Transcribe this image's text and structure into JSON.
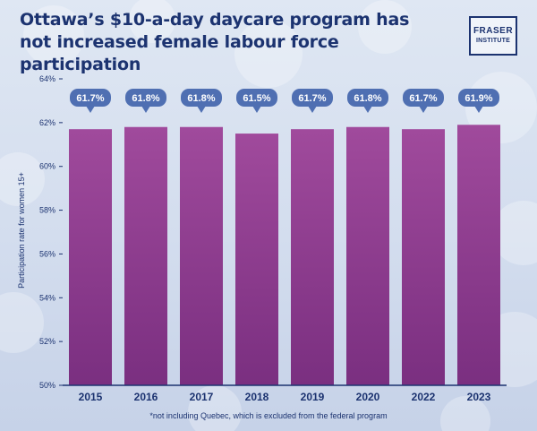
{
  "title": "Ottawa’s $10-a-day daycare program has not increased female labour force participation",
  "logo": {
    "line1": "FRASER",
    "line2": "INSTITUTE"
  },
  "footnote": "*not including Quebec, which is excluded from the federal program",
  "colors": {
    "title": "#1c3370",
    "bar_top": "#a04a9c",
    "bar_bottom": "#7a2f80",
    "callout": "#4f6fb2",
    "axis": "#1c3370"
  },
  "chart_data": {
    "type": "bar",
    "categories": [
      "2015",
      "2016",
      "2017",
      "2018",
      "2019",
      "2020",
      "2022",
      "2023"
    ],
    "values": [
      61.7,
      61.8,
      61.8,
      61.5,
      61.7,
      61.8,
      61.7,
      61.9
    ],
    "data_labels": [
      "61.7%",
      "61.8%",
      "61.8%",
      "61.5%",
      "61.7%",
      "61.8%",
      "61.7%",
      "61.9%"
    ],
    "ylabel": "Participation rate for women 15+",
    "xlabel": "",
    "ylim": [
      50,
      64
    ],
    "yticks": [
      50,
      52,
      54,
      56,
      58,
      60,
      62,
      64
    ],
    "ytick_labels": [
      "50%",
      "52%",
      "54%",
      "56%",
      "58%",
      "60%",
      "62%",
      "64%"
    ],
    "grid": false
  }
}
